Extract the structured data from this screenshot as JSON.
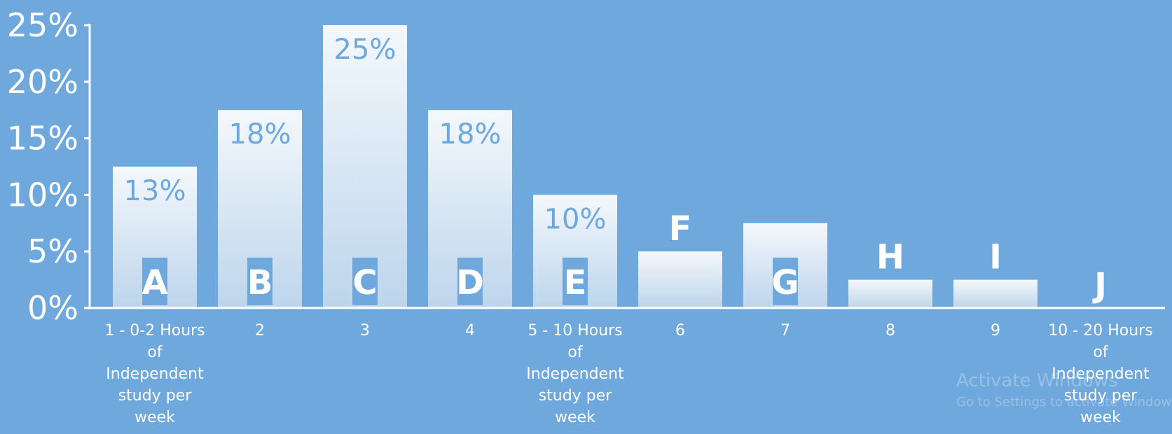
{
  "chart_data": {
    "type": "bar",
    "categories": [
      "1 - 0-2 Hours of Independent study per week",
      "2",
      "3",
      "4",
      "5 - 10 Hours of Independent study per week",
      "6",
      "7",
      "8",
      "9",
      "10 - 20 Hours of Independent study per week"
    ],
    "category_lines": [
      [
        "1 - 0-2 Hours",
        "of",
        "Independent",
        "study per",
        "week"
      ],
      [
        "2"
      ],
      [
        "3"
      ],
      [
        "4"
      ],
      [
        "5 - 10 Hours",
        "of",
        "Independent",
        "study per",
        "week"
      ],
      [
        "6"
      ],
      [
        "7"
      ],
      [
        "8"
      ],
      [
        "9"
      ],
      [
        "10 - 20 Hours",
        "of",
        "Independent",
        "study per",
        "week"
      ]
    ],
    "values": [
      0.125,
      0.175,
      0.25,
      0.175,
      0.1,
      0.05,
      0.075,
      0.025,
      0.025,
      0.0
    ],
    "value_labels": [
      "13%",
      "18%",
      "25%",
      "18%",
      "10%",
      "",
      "",
      "",
      "",
      ""
    ],
    "bar_letters": [
      "A",
      "B",
      "C",
      "D",
      "E",
      "F",
      "G",
      "H",
      "I",
      "J"
    ],
    "title": "",
    "xlabel": "",
    "ylabel": "",
    "ylim": [
      0,
      0.25
    ],
    "yticks": [
      0,
      0.05,
      0.1,
      0.15,
      0.2,
      0.25
    ],
    "ytick_labels": [
      "0%",
      "5%",
      "10%",
      "15%",
      "20%",
      "25%"
    ],
    "grid": false,
    "colors": {
      "background": "#6fa8dc",
      "bar_top": "#f4f8fc",
      "bar_bottom": "#bdd5ec",
      "label_inside": "#6fa8dc",
      "label_outside": "#ffffff",
      "letter_box": "#6fa8dc"
    }
  },
  "watermark": {
    "line1": "Activate Windows",
    "line2": "Go to Settings to activate Windows."
  }
}
